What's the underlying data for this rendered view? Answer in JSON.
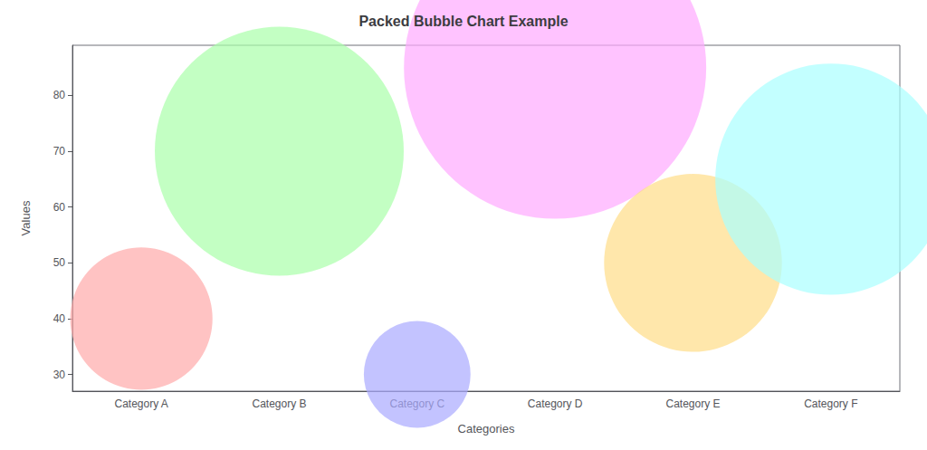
{
  "chart_data": {
    "type": "scatter",
    "title": "Packed Bubble Chart Example",
    "xlabel": "Categories",
    "ylabel": "Values",
    "categories": [
      "Category A",
      "Category B",
      "Category C",
      "Category D",
      "Category E",
      "Category F"
    ],
    "values": [
      40,
      70,
      30,
      85,
      50,
      65
    ],
    "sizes": [
      12800,
      39200,
      7200,
      57800,
      20000,
      33800
    ],
    "colors": [
      "#ffaaaa",
      "#aaffaa",
      "#aaaaff",
      "#ffaaff",
      "#ffdd88",
      "#aaffff"
    ],
    "ylim": [
      27,
      89
    ],
    "yticks": [
      30,
      40,
      50,
      60,
      70,
      80
    ],
    "grid": false
  }
}
